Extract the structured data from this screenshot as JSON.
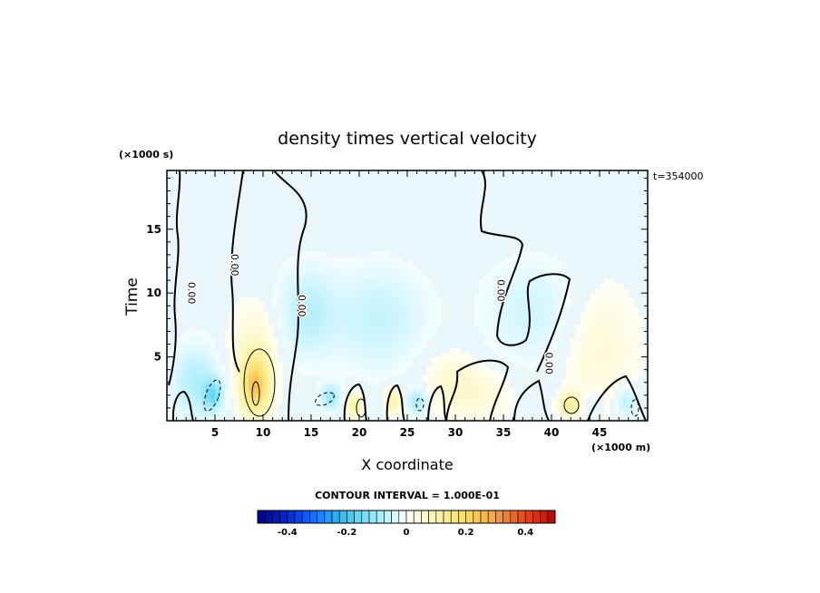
{
  "chart_data": {
    "type": "heatmap",
    "title": "density times vertical velocity",
    "xlabel": "X coordinate",
    "ylabel": "Time",
    "x_unit": "(×1000 m)",
    "y_unit": "(×1000 s)",
    "time_stamp": "t=354000",
    "xlim": [
      0,
      50
    ],
    "ylim": [
      0,
      19.6
    ],
    "x_ticks": [
      5,
      10,
      15,
      20,
      25,
      30,
      35,
      40,
      45
    ],
    "y_ticks": [
      5,
      10,
      15
    ],
    "contour_interval_label": "CONTOUR INTERVAL = 1.000E-01",
    "contour_labels": [
      {
        "text": "0.00",
        "x": 2.2,
        "y": 10.0
      },
      {
        "text": "0.00",
        "x": 6.7,
        "y": 12.2
      },
      {
        "text": "0.00",
        "x": 13.7,
        "y": 9.0
      },
      {
        "text": "0.00",
        "x": 34.4,
        "y": 10.2
      },
      {
        "text": "0.00",
        "x": 39.4,
        "y": 4.5
      }
    ],
    "colorbar": {
      "range": [
        -0.5,
        0.5
      ],
      "tick_values": [
        -0.4,
        -0.2,
        0,
        0.2,
        0.4
      ],
      "tick_labels": [
        "-0.4",
        "-0.2",
        "0",
        "0.2",
        "0.4"
      ]
    },
    "features": [
      {
        "x": 9.2,
        "y": 2.7,
        "sx": 1.5,
        "sy": 2.2,
        "v": 0.22
      },
      {
        "x": 9.0,
        "y": 5.5,
        "sx": 2.5,
        "sy": 3.5,
        "v": 0.06
      },
      {
        "x": 3.0,
        "y": 3.0,
        "sx": 2.5,
        "sy": 3.0,
        "v": -0.08
      },
      {
        "x": 4.8,
        "y": 2.0,
        "sx": 1.0,
        "sy": 1.2,
        "v": -0.12
      },
      {
        "x": 14.5,
        "y": 8.5,
        "sx": 3.0,
        "sy": 3.5,
        "v": -0.07
      },
      {
        "x": 17.0,
        "y": 1.8,
        "sx": 1.0,
        "sy": 1.0,
        "v": -0.1
      },
      {
        "x": 19.5,
        "y": 1.2,
        "sx": 0.8,
        "sy": 1.0,
        "v": 0.12
      },
      {
        "x": 23.5,
        "y": 1.5,
        "sx": 0.9,
        "sy": 1.0,
        "v": 0.1
      },
      {
        "x": 26.0,
        "y": 1.5,
        "sx": 1.0,
        "sy": 1.0,
        "v": -0.1
      },
      {
        "x": 22.0,
        "y": 8.0,
        "sx": 5.0,
        "sy": 4.0,
        "v": -0.06
      },
      {
        "x": 29.5,
        "y": 3.0,
        "sx": 3.0,
        "sy": 2.5,
        "v": 0.05
      },
      {
        "x": 38.0,
        "y": 8.5,
        "sx": 5.0,
        "sy": 4.0,
        "v": -0.05
      },
      {
        "x": 33.0,
        "y": 2.0,
        "sx": 3.0,
        "sy": 2.0,
        "v": 0.04
      },
      {
        "x": 41.8,
        "y": 1.3,
        "sx": 1.0,
        "sy": 0.9,
        "v": 0.12
      },
      {
        "x": 45.0,
        "y": 5.5,
        "sx": 4.0,
        "sy": 5.0,
        "v": 0.05
      },
      {
        "x": 47.8,
        "y": 1.5,
        "sx": 1.2,
        "sy": 1.3,
        "v": -0.08
      },
      {
        "x": 44.5,
        "y": 1.2,
        "sx": 0.8,
        "sy": 1.0,
        "v": -0.06
      }
    ]
  }
}
